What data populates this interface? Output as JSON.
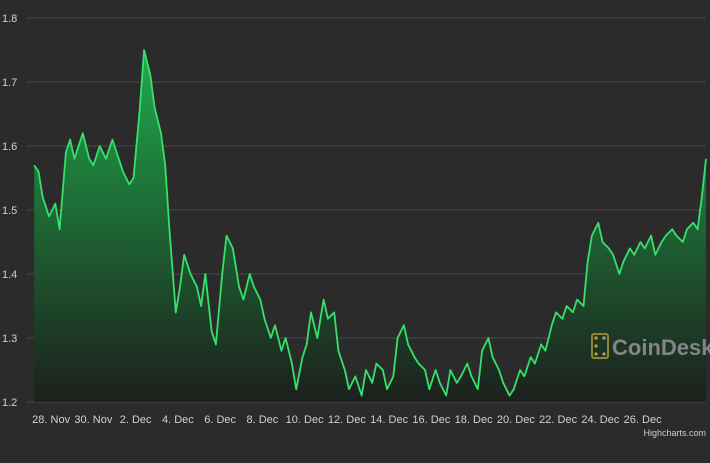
{
  "colors": {
    "background": "#2b2b2b",
    "grid": "#4a4a4a",
    "line": "#35e16b",
    "area_top": "#1fb34d",
    "area_bottom": "#1a1f1b",
    "tick_text": "#d0d0d0",
    "watermark": "#8a8a8a"
  },
  "watermark": {
    "text": "CoinDesk",
    "icon": "coindesk-logo-icon"
  },
  "credit": "Highcharts.com",
  "chart_data": {
    "type": "area",
    "title": "",
    "xlabel": "",
    "ylabel": "",
    "ylim": [
      1.2,
      1.8
    ],
    "yticks": [
      1.2,
      1.3,
      1.4,
      1.5,
      1.6,
      1.7,
      1.8
    ],
    "xlim": [
      0,
      32
    ],
    "xticks": [
      {
        "label": "28. Nov",
        "day": 1
      },
      {
        "label": "30. Nov",
        "day": 3
      },
      {
        "label": "2. Dec",
        "day": 5
      },
      {
        "label": "4. Dec",
        "day": 7
      },
      {
        "label": "6. Dec",
        "day": 9
      },
      {
        "label": "8. Dec",
        "day": 11
      },
      {
        "label": "10. Dec",
        "day": 13
      },
      {
        "label": "12. Dec",
        "day": 15
      },
      {
        "label": "14. Dec",
        "day": 17
      },
      {
        "label": "16. Dec",
        "day": 19
      },
      {
        "label": "18. Dec",
        "day": 21
      },
      {
        "label": "20. Dec",
        "day": 23
      },
      {
        "label": "22. Dec",
        "day": 25
      },
      {
        "label": "24. Dec",
        "day": 27
      },
      {
        "label": "26. Dec",
        "day": 29
      }
    ],
    "grid": true,
    "series": [
      {
        "x": [
          0.2,
          0.4,
          0.6,
          0.9,
          1.2,
          1.4,
          1.7,
          1.9,
          2.1,
          2.3,
          2.5,
          2.8,
          3.0,
          3.3,
          3.6,
          3.9,
          4.1,
          4.4,
          4.7,
          4.9,
          5.2,
          5.4,
          5.7,
          5.9,
          6.2,
          6.4,
          6.6,
          6.9,
          7.1,
          7.3,
          7.6,
          7.9,
          8.1,
          8.3,
          8.6,
          8.8,
          9.1,
          9.3,
          9.6,
          9.9,
          10.1,
          10.4,
          10.6,
          10.9,
          11.1,
          11.4,
          11.6,
          11.9,
          12.1,
          12.4,
          12.6,
          12.9,
          13.1,
          13.3,
          13.6,
          13.9,
          14.1,
          14.4,
          14.6,
          14.9,
          15.1,
          15.4,
          15.7,
          15.9,
          16.2,
          16.4,
          16.7,
          16.9,
          17.2,
          17.4,
          17.7,
          17.9,
          18.2,
          18.4,
          18.7,
          18.9,
          19.2,
          19.4,
          19.7,
          19.9,
          20.2,
          20.4,
          20.7,
          20.9,
          21.2,
          21.4,
          21.7,
          21.9,
          22.2,
          22.4,
          22.7,
          22.9,
          23.2,
          23.4,
          23.7,
          23.9,
          24.2,
          24.4,
          24.7,
          24.9,
          25.2,
          25.4,
          25.7,
          25.9,
          26.2,
          26.4,
          26.6,
          26.9,
          27.1,
          27.4,
          27.6,
          27.9,
          28.1,
          28.4,
          28.6,
          28.9,
          29.1,
          29.4,
          29.6,
          29.9,
          30.1,
          30.4,
          30.6,
          30.9,
          31.1,
          31.4,
          31.6,
          31.8,
          32.0
        ],
        "values": [
          1.57,
          1.56,
          1.52,
          1.49,
          1.51,
          1.47,
          1.59,
          1.61,
          1.58,
          1.6,
          1.62,
          1.58,
          1.57,
          1.6,
          1.58,
          1.61,
          1.59,
          1.56,
          1.54,
          1.55,
          1.66,
          1.75,
          1.71,
          1.66,
          1.62,
          1.57,
          1.47,
          1.34,
          1.38,
          1.43,
          1.4,
          1.38,
          1.35,
          1.4,
          1.31,
          1.29,
          1.4,
          1.46,
          1.44,
          1.38,
          1.36,
          1.4,
          1.38,
          1.36,
          1.33,
          1.3,
          1.32,
          1.28,
          1.3,
          1.26,
          1.22,
          1.27,
          1.29,
          1.34,
          1.3,
          1.36,
          1.33,
          1.34,
          1.28,
          1.25,
          1.22,
          1.24,
          1.21,
          1.25,
          1.23,
          1.26,
          1.25,
          1.22,
          1.24,
          1.3,
          1.32,
          1.29,
          1.27,
          1.26,
          1.25,
          1.22,
          1.25,
          1.23,
          1.21,
          1.25,
          1.23,
          1.24,
          1.26,
          1.24,
          1.22,
          1.28,
          1.3,
          1.27,
          1.25,
          1.23,
          1.21,
          1.22,
          1.25,
          1.24,
          1.27,
          1.26,
          1.29,
          1.28,
          1.32,
          1.34,
          1.33,
          1.35,
          1.34,
          1.36,
          1.35,
          1.42,
          1.46,
          1.48,
          1.45,
          1.44,
          1.43,
          1.4,
          1.42,
          1.44,
          1.43,
          1.45,
          1.44,
          1.46,
          1.43,
          1.45,
          1.46,
          1.47,
          1.46,
          1.45,
          1.47,
          1.48,
          1.47,
          1.52,
          1.58
        ]
      }
    ]
  }
}
